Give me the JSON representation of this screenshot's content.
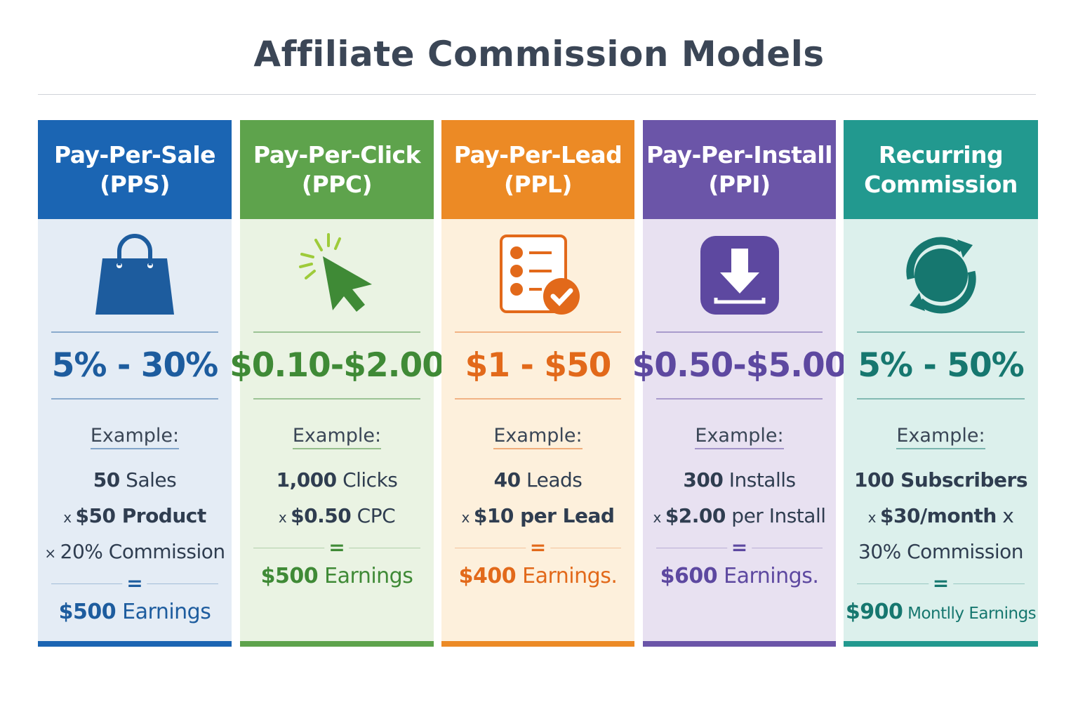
{
  "title": "Affiliate Commission Models",
  "models": [
    {
      "name": "Pay-Per-Sale",
      "abbr": "(PPS)",
      "icon": "shopping-bag-icon",
      "rate": "5% - 30%",
      "example_label": "Example:",
      "lines": [
        {
          "pre": "",
          "bold": "50",
          "post": " Sales"
        },
        {
          "pre": "x",
          "bold": "$50 Product",
          "post": ""
        },
        {
          "pre": "×",
          "bold": "",
          "post": "20% Commission"
        }
      ],
      "equals": "=",
      "earnings_amount": "$500",
      "earnings_label": " Earnings",
      "colors": {
        "header": "#1b65b3",
        "body": "#e4ecf5",
        "accent": "#1d5c9e",
        "text": "#2c4a6e"
      }
    },
    {
      "name": "Pay-Per-Click",
      "abbr": "(PPC)",
      "icon": "cursor-click-icon",
      "rate": "$0.10-$2.00",
      "example_label": "Example:",
      "lines": [
        {
          "pre": "",
          "bold": "1,000",
          "post": " Clicks"
        },
        {
          "pre": "x",
          "bold": "$0.50",
          "post": " CPC"
        }
      ],
      "equals": "=",
      "earnings_amount": "$500",
      "earnings_label": " Earnings",
      "colors": {
        "header": "#5ea34c",
        "body": "#eaf3e3",
        "accent": "#3f8a36",
        "text": "#3a4a3a"
      }
    },
    {
      "name": "Pay-Per-Lead",
      "abbr": "(PPL)",
      "icon": "checklist-icon",
      "rate": "$1 - $50",
      "example_label": "Example:",
      "lines": [
        {
          "pre": "",
          "bold": "40",
          "post": " Leads"
        },
        {
          "pre": "x",
          "bold": "$10 per Lead",
          "post": ""
        }
      ],
      "equals": "=",
      "earnings_amount": "$400",
      "earnings_label": " Earnings.",
      "colors": {
        "header": "#ec8a25",
        "body": "#fdf0dc",
        "accent": "#e2691a",
        "text": "#3a3a40"
      }
    },
    {
      "name": "Pay-Per-Install",
      "abbr": "(PPI)",
      "icon": "download-icon",
      "rate": "$0.50-$5.00",
      "example_label": "Example:",
      "lines": [
        {
          "pre": "",
          "bold": "300",
          "post": " Installs"
        },
        {
          "pre": "x",
          "bold": "$2.00",
          "post": " per Install"
        }
      ],
      "equals": "=",
      "earnings_amount": "$600",
      "earnings_label": " Earnings.",
      "colors": {
        "header": "#6b55a8",
        "body": "#e8e1f1",
        "accent": "#5d48a0",
        "text": "#3a3a50"
      }
    },
    {
      "name": "Recurring",
      "abbr": "Commission",
      "icon": "recurring-arrows-icon",
      "rate": "5% - 50%",
      "example_label": "Example:",
      "lines": [
        {
          "pre": "",
          "bold": "100 Subscribers",
          "post": ""
        },
        {
          "pre": "x",
          "bold": "$30/month",
          "post": " x"
        },
        {
          "pre": "",
          "bold": "",
          "post": "30% Commission"
        }
      ],
      "equals": "=",
      "earnings_amount": "$900",
      "earnings_label": " Montlly Earnings",
      "colors": {
        "header": "#22998f",
        "body": "#dcf0ec",
        "accent": "#16776f",
        "text": "#2f4a4a"
      }
    }
  ]
}
